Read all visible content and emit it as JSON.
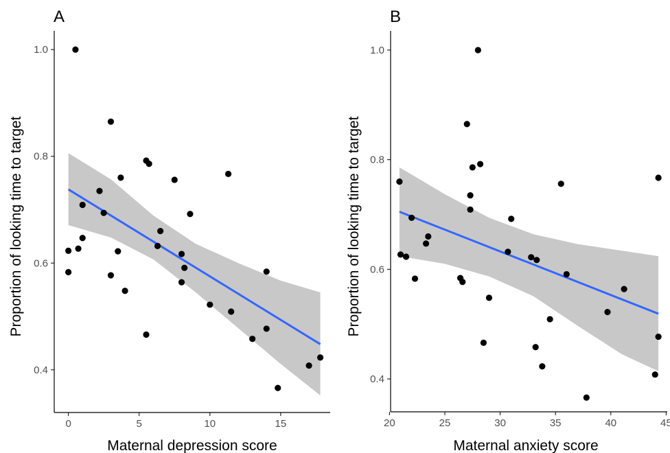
{
  "chart_data": [
    {
      "type": "scatter",
      "panel_label": "A",
      "xlabel": "Maternal depression score",
      "ylabel": "Proportion of looking time to target",
      "xlim": [
        -1,
        18.5
      ],
      "ylim": [
        0.32,
        1.035
      ],
      "xticks": [
        0,
        5,
        10,
        15
      ],
      "yticks": [
        0.4,
        0.6,
        0.8,
        1.0
      ],
      "xtick_labels": [
        "0",
        "5",
        "10",
        "15"
      ],
      "ytick_labels": [
        "0.4",
        "0.6",
        "0.8",
        "1.0"
      ],
      "grid": false,
      "fit": {
        "method": "linear",
        "line_color": "#3366ff",
        "band_color": "#c8c8c8",
        "x_range": [
          0,
          17.8
        ],
        "line": [
          [
            0,
            0.738
          ],
          [
            17.8,
            0.448
          ]
        ],
        "band_upper": [
          [
            0,
            0.806
          ],
          [
            3,
            0.757
          ],
          [
            6,
            0.689
          ],
          [
            9,
            0.636
          ],
          [
            12,
            0.6
          ],
          [
            15,
            0.567
          ],
          [
            17.8,
            0.545
          ]
        ],
        "band_lower": [
          [
            0,
            0.671
          ],
          [
            3,
            0.648
          ],
          [
            6,
            0.607
          ],
          [
            9,
            0.545
          ],
          [
            12,
            0.478
          ],
          [
            15,
            0.411
          ],
          [
            17.8,
            0.352
          ]
        ]
      },
      "points": [
        [
          0.5,
          1.0
        ],
        [
          3.0,
          0.865
        ],
        [
          5.5,
          0.792
        ],
        [
          5.7,
          0.786
        ],
        [
          3.7,
          0.76
        ],
        [
          7.5,
          0.756
        ],
        [
          11.3,
          0.767
        ],
        [
          2.2,
          0.735
        ],
        [
          1.0,
          0.709
        ],
        [
          2.5,
          0.694
        ],
        [
          8.6,
          0.692
        ],
        [
          6.5,
          0.66
        ],
        [
          1.0,
          0.647
        ],
        [
          6.3,
          0.632
        ],
        [
          0.7,
          0.627
        ],
        [
          0.0,
          0.623
        ],
        [
          3.5,
          0.622
        ],
        [
          8.0,
          0.617
        ],
        [
          8.2,
          0.591
        ],
        [
          0.0,
          0.583
        ],
        [
          14.0,
          0.584
        ],
        [
          3.0,
          0.577
        ],
        [
          8.0,
          0.564
        ],
        [
          4.0,
          0.548
        ],
        [
          10.0,
          0.522
        ],
        [
          11.5,
          0.509
        ],
        [
          5.5,
          0.466
        ],
        [
          13.0,
          0.458
        ],
        [
          14.0,
          0.477
        ],
        [
          14.8,
          0.366
        ],
        [
          17.0,
          0.408
        ],
        [
          17.8,
          0.423
        ]
      ]
    },
    {
      "type": "scatter",
      "panel_label": "B",
      "xlabel": "Maternal anxiety score",
      "ylabel": "Proportion of looking time to target",
      "xlim": [
        20.1,
        45.1
      ],
      "ylim": [
        0.34,
        1.035
      ],
      "xticks": [
        20,
        25,
        30,
        35,
        40,
        45
      ],
      "yticks": [
        0.4,
        0.6,
        0.8,
        1.0
      ],
      "xtick_labels": [
        "20",
        "25",
        "30",
        "35",
        "40",
        "45"
      ],
      "ytick_labels": [
        "0.4",
        "0.6",
        "0.8",
        "1.0"
      ],
      "grid": false,
      "fit": {
        "method": "linear",
        "line_color": "#3366ff",
        "band_color": "#c8c8c8",
        "x_range": [
          20.9,
          44.3
        ],
        "line": [
          [
            20.9,
            0.705
          ],
          [
            44.3,
            0.519
          ]
        ],
        "band_upper": [
          [
            20.9,
            0.786
          ],
          [
            25,
            0.737
          ],
          [
            29,
            0.694
          ],
          [
            33,
            0.664
          ],
          [
            37,
            0.646
          ],
          [
            41,
            0.634
          ],
          [
            44.3,
            0.624
          ]
        ],
        "band_lower": [
          [
            20.9,
            0.624
          ],
          [
            25,
            0.61
          ],
          [
            29,
            0.587
          ],
          [
            33,
            0.551
          ],
          [
            37,
            0.497
          ],
          [
            41,
            0.445
          ],
          [
            44.3,
            0.414
          ]
        ]
      },
      "points": [
        [
          28.0,
          1.0
        ],
        [
          27.0,
          0.865
        ],
        [
          27.5,
          0.786
        ],
        [
          28.2,
          0.792
        ],
        [
          20.9,
          0.76
        ],
        [
          35.5,
          0.756
        ],
        [
          44.3,
          0.767
        ],
        [
          27.3,
          0.735
        ],
        [
          27.3,
          0.709
        ],
        [
          22.0,
          0.694
        ],
        [
          31.0,
          0.692
        ],
        [
          23.5,
          0.66
        ],
        [
          23.3,
          0.647
        ],
        [
          30.7,
          0.632
        ],
        [
          21.0,
          0.627
        ],
        [
          21.5,
          0.623
        ],
        [
          32.8,
          0.622
        ],
        [
          33.3,
          0.617
        ],
        [
          36.0,
          0.591
        ],
        [
          22.3,
          0.583
        ],
        [
          26.4,
          0.584
        ],
        [
          26.6,
          0.577
        ],
        [
          41.2,
          0.564
        ],
        [
          29.0,
          0.548
        ],
        [
          39.7,
          0.522
        ],
        [
          34.5,
          0.509
        ],
        [
          28.5,
          0.466
        ],
        [
          33.2,
          0.458
        ],
        [
          44.3,
          0.477
        ],
        [
          33.8,
          0.423
        ],
        [
          44.0,
          0.408
        ],
        [
          37.8,
          0.366
        ]
      ]
    }
  ]
}
